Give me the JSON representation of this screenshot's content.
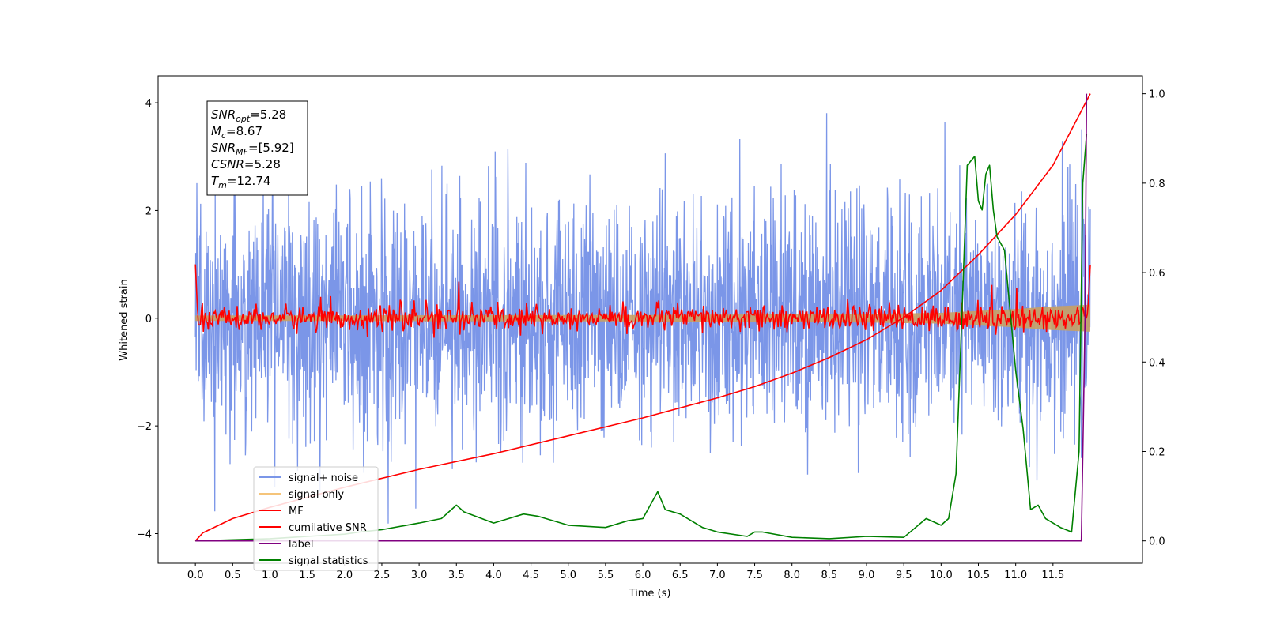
{
  "chart_data": {
    "type": "line",
    "xlabel": "Time (s)",
    "ylabel": "Whitened strain",
    "xlim": [
      -0.5,
      12.7
    ],
    "ylim": [
      -4.55,
      4.5
    ],
    "ylim_right": [
      -0.05,
      1.04
    ],
    "x_ticks": [
      "0.0",
      "0.5",
      "1.0",
      "1.5",
      "2.0",
      "2.5",
      "3.0",
      "3.5",
      "4.0",
      "4.5",
      "5.0",
      "5.5",
      "6.0",
      "6.5",
      "7.0",
      "7.5",
      "8.0",
      "8.5",
      "9.0",
      "9.5",
      "10.0",
      "10.5",
      "11.0",
      "11.5"
    ],
    "y_ticks_left": [
      "4",
      "2",
      "0",
      "−2",
      "−4"
    ],
    "y_ticks_right": [
      "1.0",
      "0.8",
      "0.6",
      "0.4",
      "0.2",
      "0.0"
    ],
    "annotation_box": [
      {
        "sym": "SNR",
        "sub": "opt",
        "value": "=5.28"
      },
      {
        "sym": "M",
        "sub": "c",
        "value": "=8.67"
      },
      {
        "sym": "SNR",
        "sub": "MF",
        "value": "=[5.92]"
      },
      {
        "sym": "CSNR",
        "sub": "",
        "value": "=5.28"
      },
      {
        "sym": "T",
        "sub": "m",
        "value": "=12.74"
      }
    ],
    "legend": {
      "placement": "lower-left",
      "entries": [
        {
          "label": "signal+ noise",
          "color": "#7b96e8"
        },
        {
          "label": "signal only",
          "color": "#f5c47a"
        },
        {
          "label": "MF",
          "color": "#ff0000"
        },
        {
          "label": "cumilative SNR",
          "color": "#ff0000"
        },
        {
          "label": "label",
          "color": "#800080"
        },
        {
          "label": "signal statistics",
          "color": "#008000"
        }
      ]
    },
    "series": [
      {
        "name": "signal+ noise",
        "axis": "left",
        "color": "#7b96e8",
        "x_range": [
          0.0,
          12.0
        ],
        "mean": 0.0,
        "approx_peak": 4.1,
        "approx_trough": -4.1
      },
      {
        "name": "signal only",
        "axis": "left",
        "color": "#f5c47a",
        "x": [
          0,
          6,
          9,
          10,
          11,
          11.5,
          12
        ],
        "envelope": [
          0.05,
          0.06,
          0.08,
          0.1,
          0.17,
          0.22,
          0.25
        ]
      },
      {
        "name": "MF",
        "axis": "left",
        "color": "#ff0000",
        "x": [
          0.0,
          0.05,
          0.2,
          2.55,
          4.6,
          6.15,
          7.2,
          9.15,
          10.5,
          11.0,
          11.5,
          11.95,
          12.0
        ],
        "y": [
          1.0,
          0.1,
          -0.05,
          0.4,
          0.45,
          0.3,
          0.3,
          0.25,
          0.6,
          0.55,
          0.45,
          0.2,
          1.0
        ],
        "noise_amplitude": 0.15
      },
      {
        "name": "cumilative SNR",
        "axis": "right",
        "color": "#ff0000",
        "x": [
          0,
          0.1,
          0.5,
          1.0,
          2.0,
          3.0,
          4.0,
          5.0,
          6.0,
          7.0,
          7.5,
          8.0,
          8.5,
          9.0,
          9.5,
          10.0,
          10.5,
          11.0,
          11.5,
          12.0
        ],
        "y": [
          0.0,
          0.018,
          0.05,
          0.075,
          0.12,
          0.16,
          0.195,
          0.235,
          0.275,
          0.32,
          0.345,
          0.375,
          0.41,
          0.45,
          0.5,
          0.56,
          0.64,
          0.73,
          0.84,
          1.0
        ]
      },
      {
        "name": "label",
        "axis": "right",
        "color": "#800080",
        "x": [
          0,
          11.88,
          11.93,
          11.95
        ],
        "y": [
          0.0,
          0.0,
          0.5,
          1.0
        ]
      },
      {
        "name": "signal statistics",
        "axis": "right",
        "color": "#008000",
        "x": [
          0.0,
          1.0,
          1.5,
          2.0,
          2.2,
          2.5,
          3.0,
          3.3,
          3.5,
          3.6,
          4.0,
          4.4,
          4.6,
          5.0,
          5.5,
          5.8,
          6.0,
          6.2,
          6.3,
          6.5,
          6.8,
          7.0,
          7.4,
          7.5,
          7.6,
          8.0,
          8.5,
          9.0,
          9.5,
          9.8,
          10.0,
          10.1,
          10.2,
          10.3,
          10.35,
          10.45,
          10.5,
          10.55,
          10.6,
          10.65,
          10.7,
          10.75,
          10.85,
          11.0,
          11.1,
          11.2,
          11.3,
          11.4,
          11.6,
          11.75,
          11.85,
          11.9,
          11.95
        ],
        "y": [
          0.0,
          0.005,
          0.01,
          0.015,
          0.02,
          0.025,
          0.04,
          0.05,
          0.08,
          0.065,
          0.04,
          0.06,
          0.055,
          0.035,
          0.03,
          0.045,
          0.05,
          0.11,
          0.07,
          0.06,
          0.03,
          0.02,
          0.01,
          0.02,
          0.02,
          0.008,
          0.005,
          0.01,
          0.008,
          0.05,
          0.035,
          0.05,
          0.15,
          0.6,
          0.84,
          0.86,
          0.76,
          0.74,
          0.82,
          0.84,
          0.74,
          0.68,
          0.65,
          0.38,
          0.25,
          0.07,
          0.08,
          0.05,
          0.03,
          0.02,
          0.2,
          0.8,
          0.91
        ]
      }
    ]
  }
}
